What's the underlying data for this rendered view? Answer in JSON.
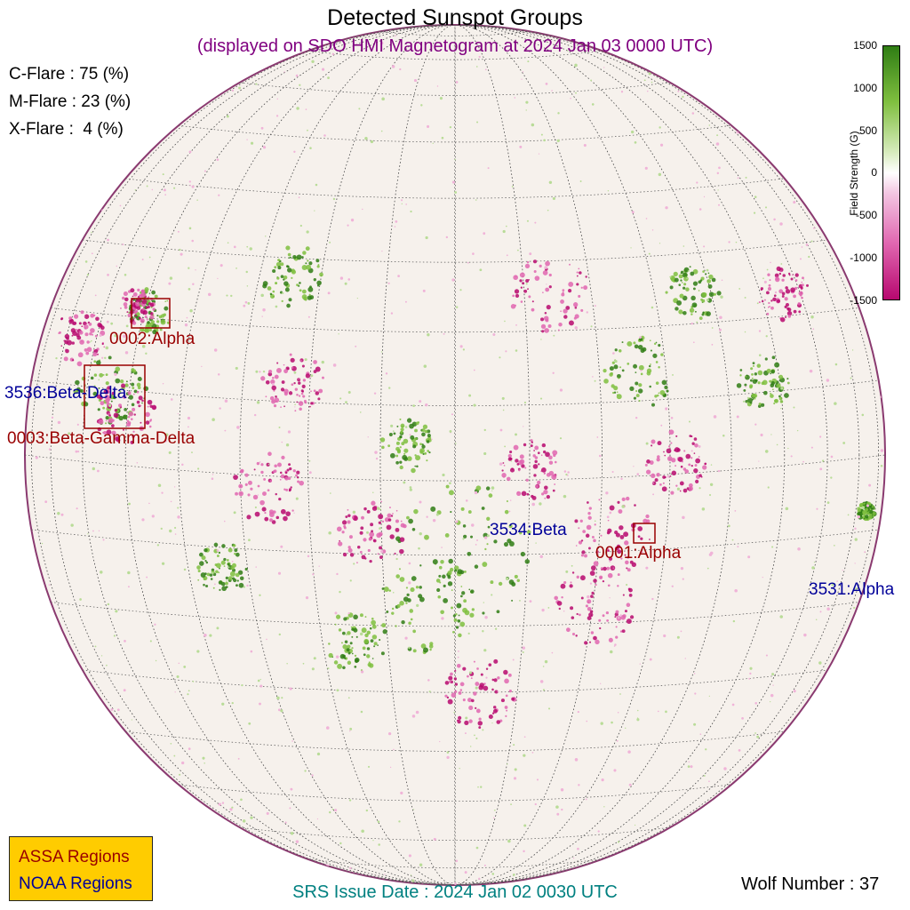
{
  "title": "Detected Sunspot Groups",
  "subtitle": "(displayed on SDO HMI Magnetogram at 2024 Jan 03 0000 UTC)",
  "flare_probabilities": [
    {
      "label": "C-Flare : 75 (%)"
    },
    {
      "label": "M-Flare : 23 (%)"
    },
    {
      "label": "X-Flare :  4 (%)"
    }
  ],
  "colorbar": {
    "label": "Field Strength (G)",
    "ticks": [
      "1500",
      "1000",
      "500",
      "0",
      "-500",
      "-1000",
      "-1500"
    ],
    "colors": {
      "positive": "#2f7d14",
      "zero": "#ffffff",
      "negative": "#b7086f"
    }
  },
  "regions": [
    {
      "label": "0002:Alpha",
      "type": "assa"
    },
    {
      "label": "3536:Beta-Delta",
      "type": "noaa"
    },
    {
      "label": "0003:Beta-Gamma-Delta",
      "type": "assa"
    },
    {
      "label": "3534:Beta",
      "type": "noaa"
    },
    {
      "label": "0001:Alpha",
      "type": "assa"
    },
    {
      "label": "3531:Alpha",
      "type": "noaa"
    }
  ],
  "legend": {
    "assa": "ASSA Regions",
    "noaa": "NOAA Regions"
  },
  "footer": {
    "issue_date": "SRS Issue Date : 2024 Jan 02 0030 UTC",
    "wolf_number": "Wolf Number : 37"
  },
  "colors": {
    "assa": "#990000",
    "noaa": "#000099",
    "title": "#000000",
    "subtitle": "#800080",
    "issue": "#008080"
  }
}
